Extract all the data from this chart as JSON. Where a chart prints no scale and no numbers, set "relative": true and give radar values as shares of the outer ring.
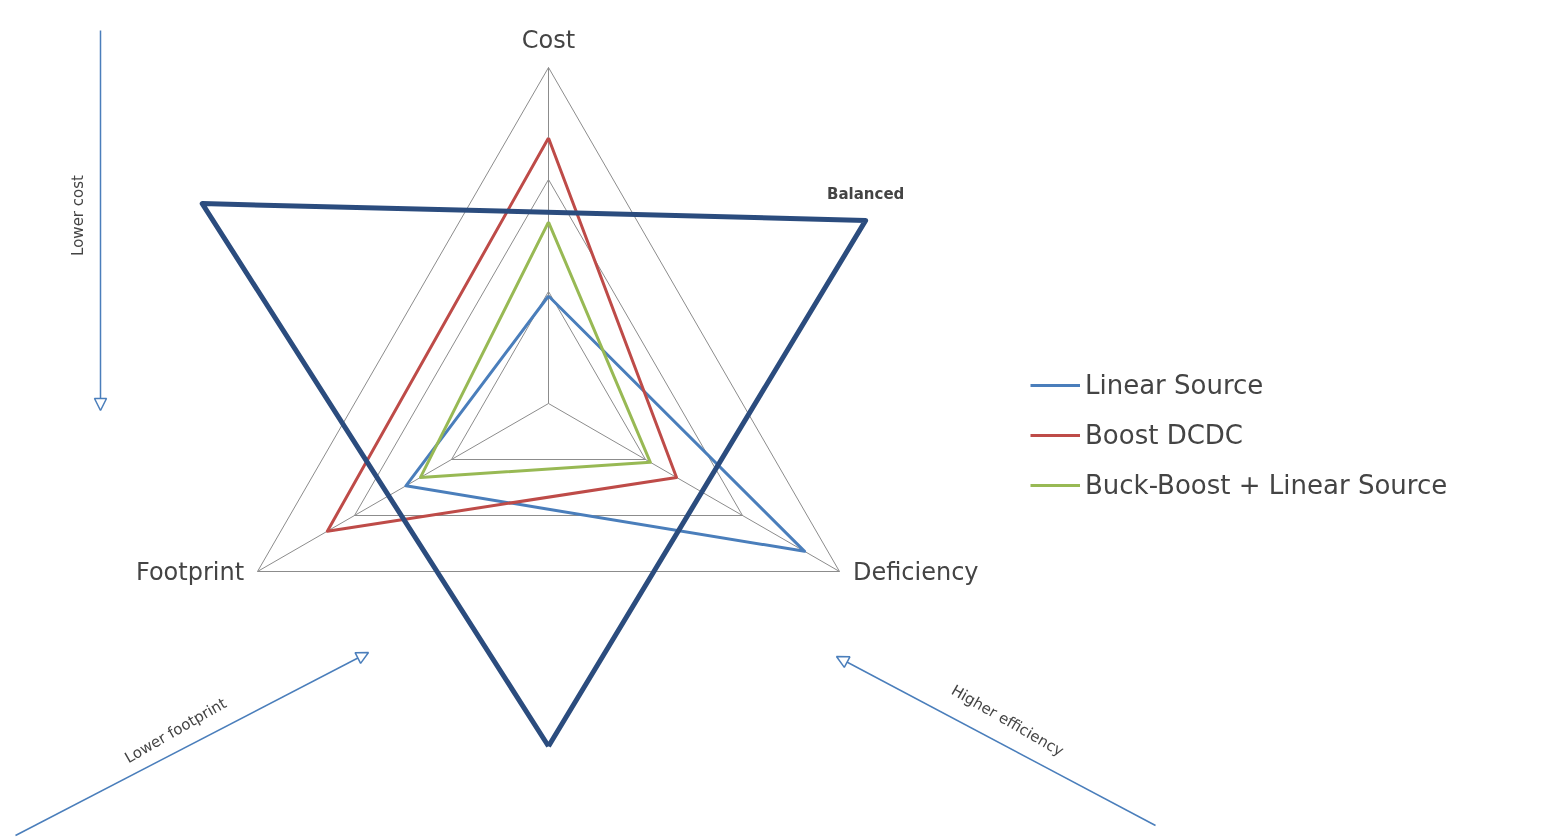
{
  "chart_data": {
    "type": "radar",
    "relative": true,
    "categories": [
      "Cost",
      "Deficiency",
      "Footprint"
    ],
    "series": [
      {
        "name": "Linear Source",
        "color": "#4a7ebb",
        "values": [
          0.32,
          0.88,
          0.49
        ]
      },
      {
        "name": "Boost DCDC",
        "color": "#be4b48",
        "values": [
          0.79,
          0.44,
          0.76
        ]
      },
      {
        "name": "Buck-Boost + Linear Source",
        "color": "#98b954",
        "values": [
          0.54,
          0.35,
          0.44
        ]
      },
      {
        "name": "Balanced",
        "color": "#2b4c7e",
        "values": [
          -1.02,
          -1.19,
          -1.09
        ]
      }
    ],
    "grid": true,
    "legend": "right",
    "line_style": "solid",
    "marker": "none",
    "annotations": [
      "Lower cost",
      "Lower footprint",
      "Higher efficiency"
    ]
  }
}
